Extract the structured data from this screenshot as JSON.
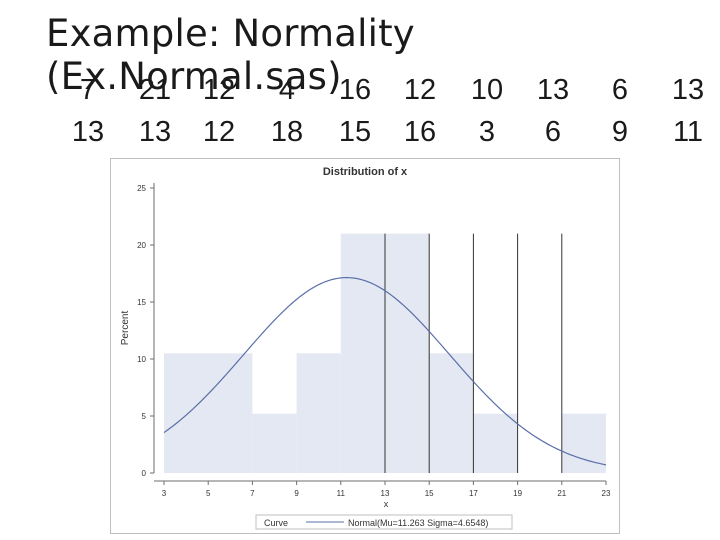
{
  "slide": {
    "title": "Example: Normality (Ex.Normal.sas)",
    "data_row_1": [
      "7",
      "21",
      "12",
      "4",
      "16",
      "12",
      "10",
      "13",
      "6",
      "13"
    ],
    "data_row_2": [
      "13",
      "13",
      "12",
      "18",
      "15",
      "16",
      "3",
      "6",
      "9",
      "11"
    ]
  },
  "chart_data": {
    "type": "bar",
    "title": "Distribution of x",
    "xlabel": "x",
    "ylabel": "Percent",
    "xlim": [
      3,
      23
    ],
    "ylim": [
      0,
      25
    ],
    "x_ticks": [
      3,
      5,
      7,
      9,
      11,
      13,
      15,
      17,
      19,
      21,
      23
    ],
    "y_ticks": [
      0,
      5,
      10,
      15,
      20,
      25
    ],
    "bins": [
      {
        "from": 3,
        "to": 7,
        "value": 10.5
      },
      {
        "from": 7,
        "to": 9,
        "value": 5.2
      },
      {
        "from": 9,
        "to": 11,
        "value": 10.5
      },
      {
        "from": 11,
        "to": 15,
        "value": 21
      },
      {
        "from": 15,
        "to": 17,
        "value": 10.5
      },
      {
        "from": 17,
        "to": 19,
        "value": 5.2
      },
      {
        "from": 19,
        "to": 21,
        "value": 0
      },
      {
        "from": 21,
        "to": 23,
        "value": 5.2
      }
    ],
    "reference_lines_x": [
      13,
      15,
      17,
      19,
      21
    ],
    "curve": {
      "type": "normal",
      "mu": 11.263,
      "sigma": 4.6548,
      "binwidth": 2
    },
    "legend": {
      "title": "Curve",
      "entry": "Normal(Mu=11.263 Sigma=4.6548)"
    },
    "colors": {
      "bar_fill": "#e3e8f2",
      "curve": "#5b6ea8",
      "refline": "#333333",
      "axis": "#6d6d6d",
      "frame": "#bfbfbf",
      "text": "#333333"
    }
  }
}
